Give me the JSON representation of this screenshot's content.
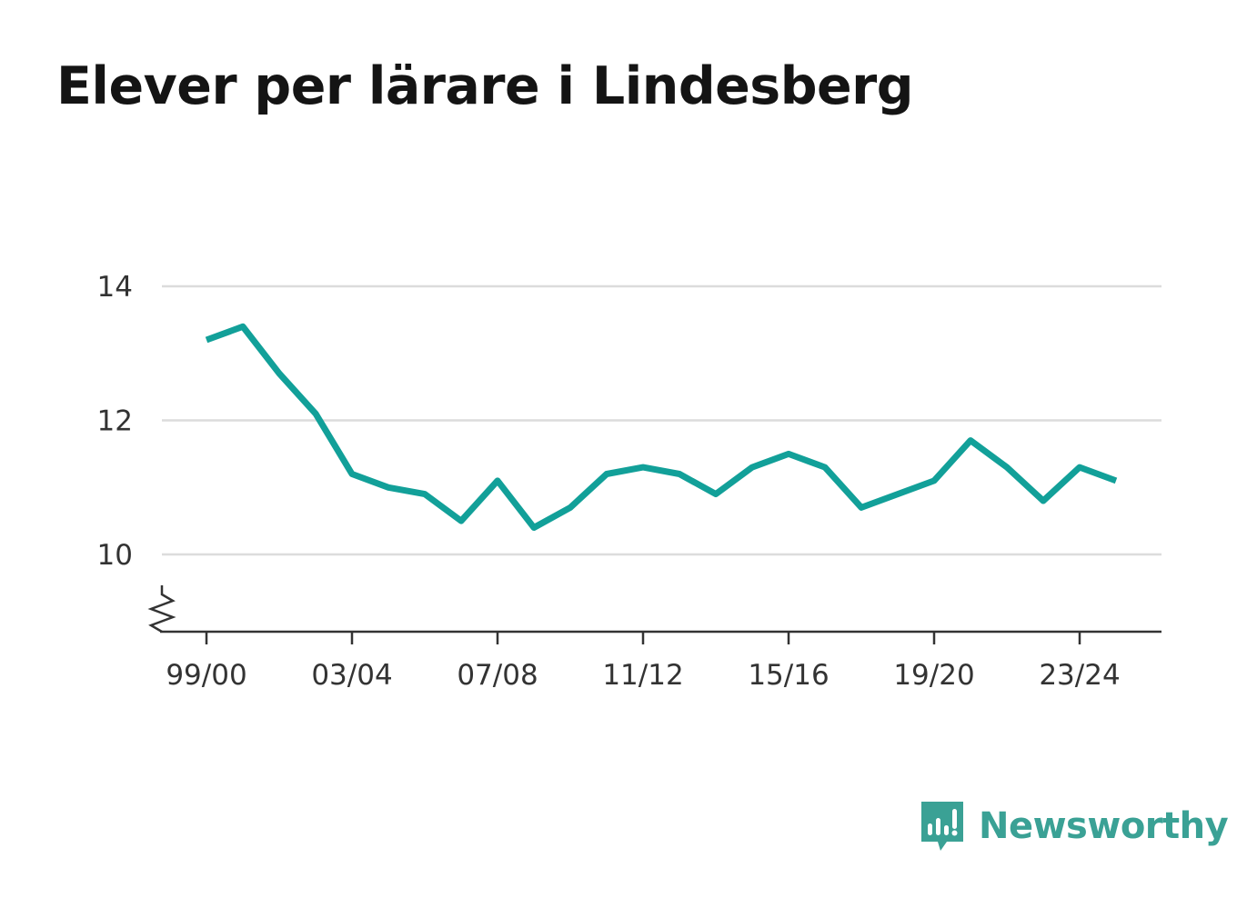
{
  "colors": {
    "line": "#12a099",
    "grid": "#dcdcdc",
    "axis": "#333333",
    "brand": "#3aa195"
  },
  "brand": {
    "name": "Newsworthy",
    "icon": "newsworthy-chart-bubble-icon"
  },
  "chart_data": {
    "type": "line",
    "title": "Elever per lärare i Lindesberg",
    "xlabel": "",
    "ylabel": "",
    "ylim": [
      8.85,
      14
    ],
    "y_ticks": [
      "10",
      "12",
      "14"
    ],
    "axis_break": true,
    "grid": "horizontal",
    "x_ticks": [
      "99/00",
      "03/04",
      "07/08",
      "11/12",
      "15/16",
      "19/20",
      "23/24"
    ],
    "categories": [
      "99/00",
      "00/01",
      "01/02",
      "02/03",
      "03/04",
      "04/05",
      "05/06",
      "06/07",
      "07/08",
      "08/09",
      "09/10",
      "10/11",
      "11/12",
      "12/13",
      "13/14",
      "14/15",
      "15/16",
      "16/17",
      "17/18",
      "18/19",
      "19/20",
      "20/21",
      "21/22",
      "22/23",
      "23/24",
      "24/25"
    ],
    "series": [
      {
        "values": [
          13.2,
          13.4,
          12.7,
          12.1,
          11.2,
          11.0,
          10.9,
          10.5,
          11.1,
          10.4,
          10.7,
          11.2,
          11.3,
          11.2,
          10.9,
          11.3,
          11.5,
          11.3,
          10.7,
          10.9,
          11.1,
          11.7,
          11.3,
          10.8,
          11.3,
          11.1
        ]
      }
    ]
  }
}
